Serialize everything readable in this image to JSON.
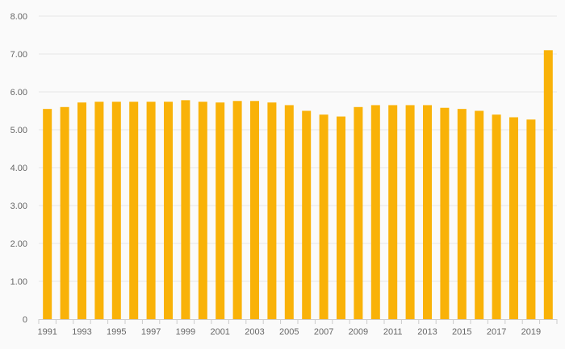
{
  "chart_data": {
    "type": "bar",
    "title": "",
    "xlabel": "",
    "ylabel": "",
    "ylim": [
      0,
      8
    ],
    "grid": true,
    "legend": "none",
    "y_tick_labels": [
      "0",
      "1.00",
      "2.00",
      "3.00",
      "4.00",
      "5.00",
      "6.00",
      "7.00",
      "8.00"
    ],
    "categories": [
      "1991",
      "1992",
      "1993",
      "1994",
      "1995",
      "1996",
      "1997",
      "1998",
      "1999",
      "2000",
      "2001",
      "2002",
      "2003",
      "2004",
      "2005",
      "2006",
      "2007",
      "2008",
      "2009",
      "2010",
      "2011",
      "2012",
      "2013",
      "2014",
      "2015",
      "2016",
      "2017",
      "2018",
      "2019",
      "2020"
    ],
    "x_tick_labels": [
      "1991",
      "1993",
      "1995",
      "1997",
      "1999",
      "2001",
      "2003",
      "2005",
      "2007",
      "2009",
      "2011",
      "2013",
      "2015",
      "2017",
      "2019"
    ],
    "values": [
      5.55,
      5.6,
      5.72,
      5.74,
      5.74,
      5.74,
      5.74,
      5.74,
      5.78,
      5.74,
      5.72,
      5.76,
      5.76,
      5.72,
      5.65,
      5.5,
      5.4,
      5.35,
      5.6,
      5.65,
      5.65,
      5.65,
      5.65,
      5.58,
      5.55,
      5.5,
      5.4,
      5.33,
      5.27,
      7.1
    ],
    "colors": {
      "bar": "#f9b208",
      "grid": "#e6e6e6",
      "axis": "#cccccc",
      "text": "#666666"
    }
  }
}
